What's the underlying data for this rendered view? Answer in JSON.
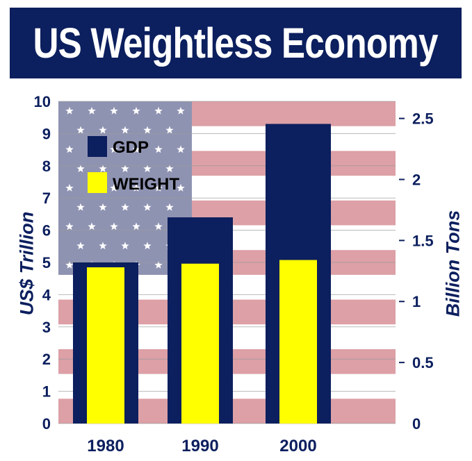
{
  "title": "US Weightless Economy",
  "colors": {
    "title_bg": "#0c1f5e",
    "gdp": "#0c1f5e",
    "weight": "#ffff00",
    "flag_stripe": "#dca0a6",
    "flag_canton": "#8f93b2"
  },
  "chart_data": {
    "type": "bar",
    "title": "US Weightless Economy",
    "categories": [
      "1980",
      "1990",
      "2000"
    ],
    "series": [
      {
        "name": "GDP",
        "axis": "left",
        "values": [
          5.0,
          6.4,
          9.3
        ]
      },
      {
        "name": "WEIGHT",
        "axis": "right",
        "values": [
          1.28,
          1.31,
          1.34
        ]
      }
    ],
    "ylabel": "US$ Trillion",
    "y2label": "Billion Tons",
    "ylim": [
      0,
      10
    ],
    "y2lim": [
      0,
      2.64
    ],
    "yticks": [
      "0",
      "1",
      "2",
      "3",
      "4",
      "5",
      "6",
      "7",
      "8",
      "9",
      "10"
    ],
    "y2ticks": [
      "0",
      "0.5",
      "1",
      "1.5",
      "2",
      "2.5"
    ],
    "legend_position": "top-left",
    "background": "US flag",
    "grid": true
  }
}
